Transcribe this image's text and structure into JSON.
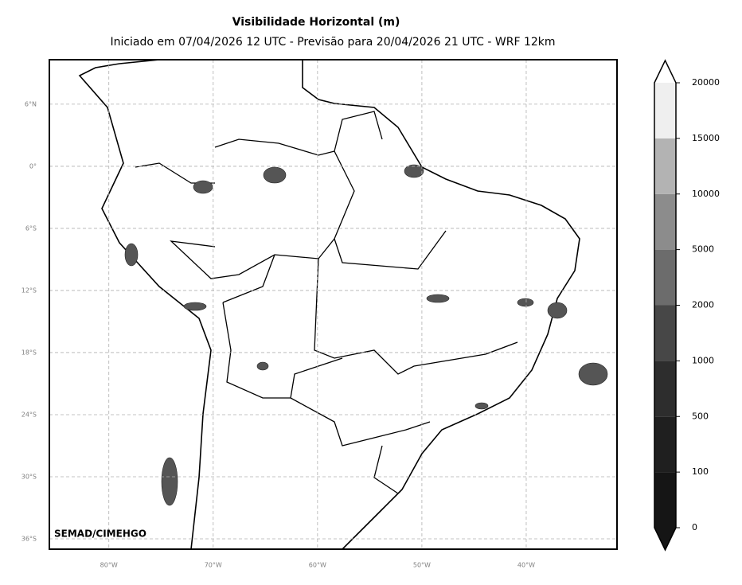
{
  "title": "Visibilidade Horizontal (m)",
  "subtitle": "Iniciado em 07/04/2026 12 UTC - Previsão para 20/04/2026 21 UTC - WRF 12km",
  "map": {
    "xlim": [
      -85.7,
      -31.3
    ],
    "ylim": [
      -37,
      10.3
    ],
    "xticks": [
      {
        "value": -80,
        "label": "80°W"
      },
      {
        "value": -70,
        "label": "70°W"
      },
      {
        "value": -60,
        "label": "60°W"
      },
      {
        "value": -50,
        "label": "50°W"
      },
      {
        "value": -40,
        "label": "40°W"
      }
    ],
    "yticks": [
      {
        "value": 6,
        "label": "6°N"
      },
      {
        "value": 0,
        "label": "0°"
      },
      {
        "value": -6,
        "label": "6°S"
      },
      {
        "value": -12,
        "label": "12°S"
      },
      {
        "value": -18,
        "label": "18°S"
      },
      {
        "value": -24,
        "label": "24°S"
      },
      {
        "value": -30,
        "label": "30°S"
      },
      {
        "value": -36,
        "label": "36°S"
      }
    ],
    "grid": true,
    "credit": "SEMAD/CIMEHGO"
  },
  "colorbar": {
    "levels": [
      0,
      100,
      500,
      1000,
      2000,
      5000,
      10000,
      15000,
      20000
    ],
    "colors": [
      "#151515",
      "#1f1f1f",
      "#2d2d2d",
      "#474747",
      "#6c6c6c",
      "#8c8c8c",
      "#b3b3b3",
      "#efefef"
    ],
    "extend_colors": [
      "#151515",
      "#ffffff"
    ]
  }
}
